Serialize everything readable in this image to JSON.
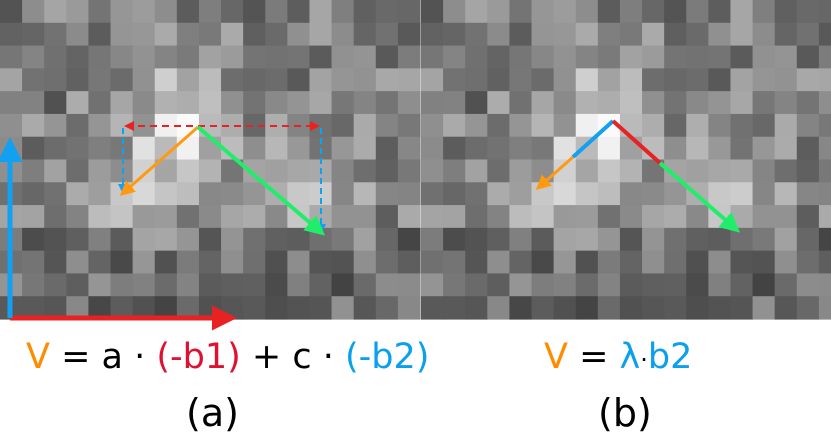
{
  "colors": {
    "red": "#e82222",
    "orange": "#ff9a10",
    "green": "#20ee6a",
    "blue": "#12a0f0"
  },
  "panel_a": {
    "equation": {
      "v": "V",
      "eq": " = a · ",
      "b1": "(-b1)",
      "plus": " + c · ",
      "b2": "(-b2)"
    },
    "caption": "(a)"
  },
  "panel_b": {
    "equation": {
      "v": "V",
      "eq": " = ",
      "lambda": "λ",
      "dot": "·",
      "b2": "b2"
    },
    "caption": "(b)"
  }
}
